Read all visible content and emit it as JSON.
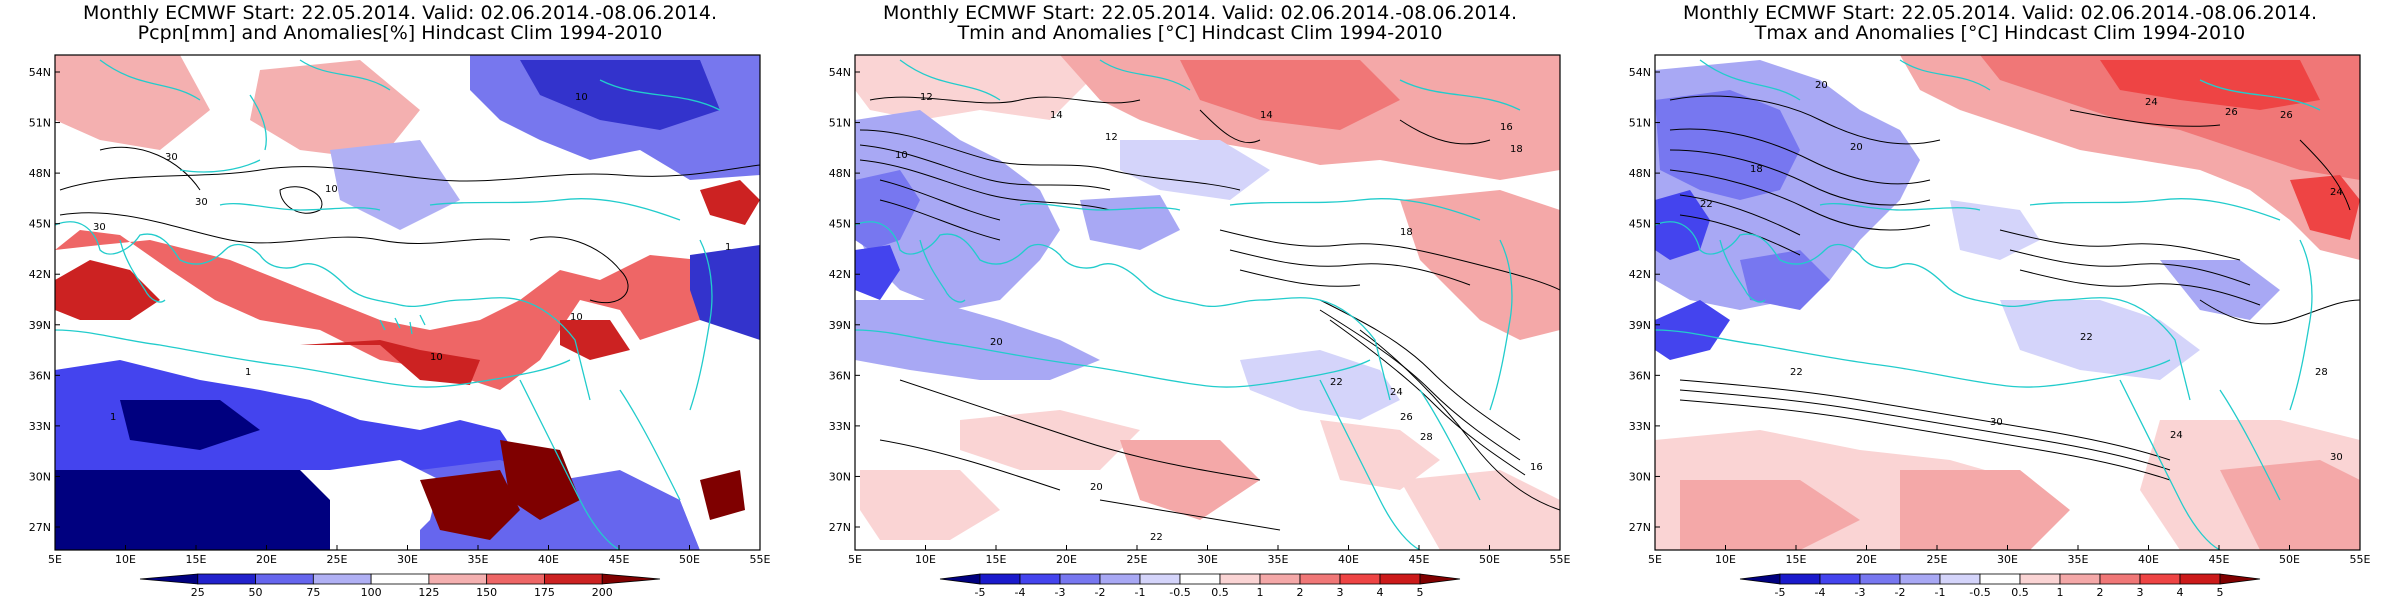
{
  "panels": [
    {
      "title_line1": "Monthly ECMWF Start: 22.05.2014. Valid: 02.06.2014.-08.06.2014.",
      "title_line2": "Pcpn[mm] and Anomalies[%] Hindcast Clim 1994-2010",
      "lat_labels": [
        "54N",
        "51N",
        "48N",
        "45N",
        "42N",
        "39N",
        "36N",
        "33N",
        "30N",
        "27N"
      ],
      "lon_labels": [
        "5E",
        "10E",
        "15E",
        "20E",
        "25E",
        "30E",
        "35E",
        "40E",
        "45E",
        "50E",
        "55E"
      ],
      "colorbar": {
        "labels": [
          "25",
          "50",
          "75",
          "100",
          "125",
          "150",
          "175",
          "200"
        ],
        "colors": [
          "#00007f",
          "#2222cc",
          "#6666ee",
          "#b0b0f4",
          "#ffffff",
          "#f4b0b0",
          "#ee6666",
          "#cc2222",
          "#7f0000"
        ]
      },
      "contour_labels": [
        {
          "text": "10"
        },
        {
          "text": "30"
        },
        {
          "text": "30"
        },
        {
          "text": "10"
        },
        {
          "text": "30"
        },
        {
          "text": "1"
        },
        {
          "text": "10"
        },
        {
          "text": "1"
        },
        {
          "text": "10"
        },
        {
          "text": "1"
        }
      ]
    },
    {
      "title_line1": "Monthly ECMWF Start: 22.05.2014. Valid: 02.06.2014.-08.06.2014.",
      "title_line2": "Tmin and Anomalies [°C] Hindcast Clim 1994-2010",
      "lat_labels": [
        "54N",
        "51N",
        "48N",
        "45N",
        "42N",
        "39N",
        "36N",
        "33N",
        "30N",
        "27N"
      ],
      "lon_labels": [
        "5E",
        "10E",
        "15E",
        "20E",
        "25E",
        "30E",
        "35E",
        "40E",
        "45E",
        "50E",
        "55E"
      ],
      "colorbar": {
        "labels": [
          "-5",
          "-4",
          "-3",
          "-2",
          "-1",
          "-0.5",
          "0.5",
          "1",
          "2",
          "3",
          "4",
          "5"
        ],
        "colors": [
          "#00007f",
          "#1a1acc",
          "#4444ee",
          "#7777f0",
          "#a8a8f4",
          "#d4d4fa",
          "#ffffff",
          "#fad4d4",
          "#f4a8a8",
          "#f07777",
          "#ee4444",
          "#cc1a1a",
          "#7f0000"
        ]
      },
      "contour_labels": [
        {
          "text": "12"
        },
        {
          "text": "14"
        },
        {
          "text": "14"
        },
        {
          "text": "16"
        },
        {
          "text": "18"
        },
        {
          "text": "10"
        },
        {
          "text": "12"
        },
        {
          "text": "18"
        },
        {
          "text": "20"
        },
        {
          "text": "22"
        },
        {
          "text": "24"
        },
        {
          "text": "26"
        },
        {
          "text": "28"
        },
        {
          "text": "16"
        },
        {
          "text": "20"
        },
        {
          "text": "22"
        }
      ]
    },
    {
      "title_line1": "Monthly ECMWF Start: 22.05.2014. Valid: 02.06.2014.-08.06.2014.",
      "title_line2": "Tmax and Anomalies [°C] Hindcast Clim 1994-2010",
      "lat_labels": [
        "54N",
        "51N",
        "48N",
        "45N",
        "42N",
        "39N",
        "36N",
        "33N",
        "30N",
        "27N"
      ],
      "lon_labels": [
        "5E",
        "10E",
        "15E",
        "20E",
        "25E",
        "30E",
        "35E",
        "40E",
        "45E",
        "50E",
        "55E"
      ],
      "colorbar": {
        "labels": [
          "-5",
          "-4",
          "-3",
          "-2",
          "-1",
          "-0.5",
          "0.5",
          "1",
          "2",
          "3",
          "4",
          "5"
        ],
        "colors": [
          "#00007f",
          "#1a1acc",
          "#4444ee",
          "#7777f0",
          "#a8a8f4",
          "#d4d4fa",
          "#ffffff",
          "#fad4d4",
          "#f4a8a8",
          "#f07777",
          "#ee4444",
          "#cc1a1a",
          "#7f0000"
        ]
      },
      "contour_labels": [
        {
          "text": "20"
        },
        {
          "text": "24"
        },
        {
          "text": "26"
        },
        {
          "text": "18"
        },
        {
          "text": "22"
        },
        {
          "text": "20"
        },
        {
          "text": "24"
        },
        {
          "text": "22"
        },
        {
          "text": "30"
        },
        {
          "text": "24"
        },
        {
          "text": "28"
        },
        {
          "text": "30"
        },
        {
          "text": "22"
        },
        {
          "text": "26"
        }
      ]
    }
  ]
}
